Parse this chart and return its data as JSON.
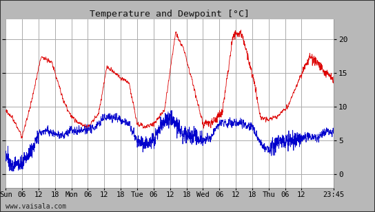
{
  "title": "Temperature and Dewpoint [°C]",
  "yticks": [
    0,
    5,
    10,
    15,
    20
  ],
  "ylim": [
    -2,
    23
  ],
  "background_color": "#ffffff",
  "outer_bg": "#b8b8b8",
  "grid_color": "#aaaaaa",
  "temp_color": "#dd0000",
  "dew_color": "#0000cc",
  "watermark": "www.vaisala.com",
  "xtick_labels": [
    "Sun",
    "06",
    "12",
    "18",
    "Mon",
    "06",
    "12",
    "18",
    "Tue",
    "06",
    "12",
    "18",
    "Wed",
    "06",
    "12",
    "18",
    "Thu",
    "06",
    "12",
    "23:45"
  ],
  "tick_times": [
    0,
    6,
    12,
    18,
    24,
    30,
    36,
    42,
    48,
    54,
    60,
    66,
    72,
    78,
    84,
    90,
    96,
    102,
    108,
    119.75
  ],
  "duration_hours": 119.75,
  "temp_keypoints_t": [
    0,
    3,
    6,
    9,
    13,
    17,
    21,
    24,
    27,
    30,
    34,
    37,
    41,
    45,
    48,
    51,
    54,
    58,
    62,
    65,
    68,
    72,
    75,
    79,
    83,
    86,
    90,
    93,
    96,
    99,
    103,
    107,
    111,
    114,
    117,
    119.75
  ],
  "temp_keypoints_v": [
    9.5,
    8.0,
    5.5,
    10.0,
    17.5,
    16.5,
    11.0,
    8.5,
    7.5,
    7.0,
    9.0,
    16.0,
    14.5,
    13.5,
    7.5,
    7.0,
    7.5,
    9.5,
    21.0,
    18.5,
    14.0,
    7.5,
    7.5,
    9.0,
    20.5,
    21.0,
    15.0,
    8.5,
    8.0,
    8.5,
    10.0,
    14.0,
    17.5,
    16.5,
    15.0,
    14.0
  ],
  "dew_keypoints_t": [
    0,
    3,
    6,
    9,
    12,
    15,
    18,
    21,
    24,
    27,
    30,
    33,
    36,
    39,
    42,
    45,
    48,
    51,
    54,
    57,
    60,
    63,
    66,
    69,
    72,
    75,
    78,
    81,
    84,
    87,
    90,
    93,
    96,
    99,
    102,
    105,
    108,
    111,
    114,
    117,
    119.75
  ],
  "dew_keypoints_v": [
    2.5,
    1.5,
    1.5,
    3.0,
    6.0,
    6.5,
    6.0,
    5.5,
    6.5,
    6.5,
    6.5,
    7.0,
    8.5,
    8.5,
    8.0,
    7.5,
    5.0,
    4.5,
    5.0,
    7.5,
    8.5,
    7.0,
    5.5,
    5.5,
    5.0,
    5.5,
    7.5,
    7.5,
    7.5,
    7.5,
    7.0,
    4.5,
    3.5,
    4.5,
    5.0,
    5.0,
    5.5,
    5.5,
    5.5,
    6.5,
    6.0
  ]
}
